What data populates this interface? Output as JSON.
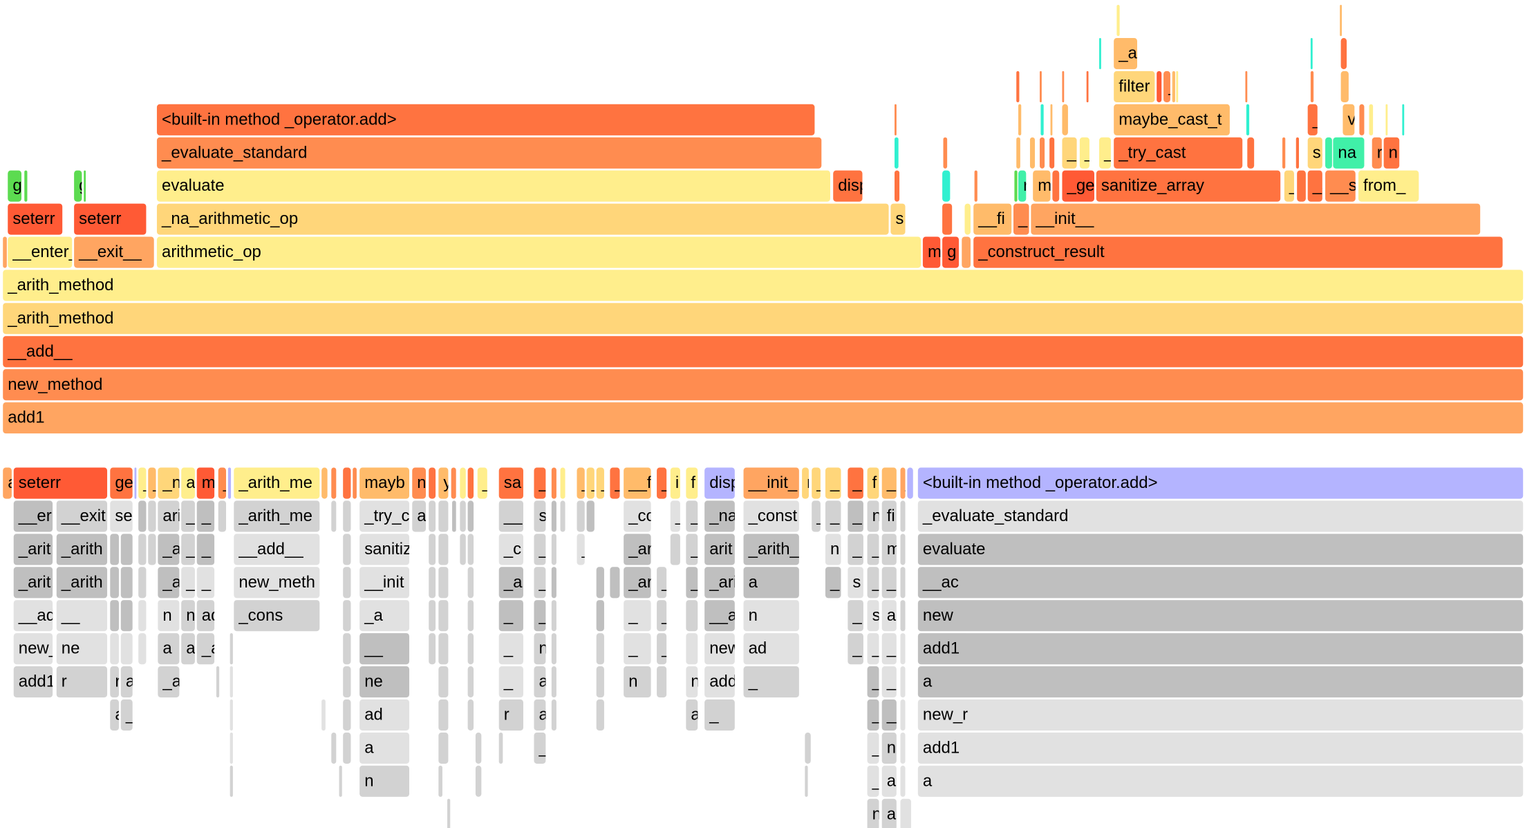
{
  "palette": {
    "Y": "#ffee8c",
    "L": "#ffd67a",
    "B": "#ffbb6a",
    "O": "#ffa561",
    "M": "#ff8c50",
    "R": "#ff7340",
    "D": "#ff5a35",
    "G": "#5cdb50",
    "C": "#30f0d0",
    "T": "#40f0a8",
    "P": "#b4b4ff",
    "A": "#e1e1e1",
    "N": "#d2d2d2",
    "K": "#bfbfbf"
  },
  "flame_graph": {
    "frames": [
      "add1",
      "new_method",
      "__add__",
      "_arith_method",
      "_arith_method",
      "__enter__",
      "__exit__",
      "arithmetic_op",
      "m",
      "g",
      "_construct_result",
      "seterr",
      "seterr",
      "_na_arithmetic_op",
      "s",
      "__fi",
      "_",
      "__init__",
      "g",
      "g",
      "evaluate",
      "disp",
      "r",
      "m",
      "_ge",
      "sanitize_array",
      "_",
      "_s",
      "__se",
      "from_",
      "_evaluate_standard",
      "_",
      "_",
      "_",
      "_try_cast",
      "s",
      "na",
      "r",
      "n",
      "<built-in method _operator.add>",
      "maybe_cast_t",
      "_",
      "va",
      "filter",
      "_",
      "_a"
    ]
  },
  "icicle_graph": {
    "frames": [
      "a",
      "seterr",
      "ge",
      "_",
      "_",
      "_n",
      "a",
      "m",
      "_",
      "_arith_me",
      "mayb",
      "n",
      "y",
      "_",
      "sa",
      "_",
      "_",
      "_",
      "_",
      "_",
      "__f",
      "_",
      "i",
      "f",
      "disp",
      "__init_",
      "r",
      "_",
      "_",
      "_",
      "f",
      "_",
      "_",
      "<built-in method _operator.add>",
      "__er",
      "__exit",
      "se",
      "ari",
      "_",
      "_",
      "_arith_me",
      "_try_c",
      "a",
      "__",
      "s",
      "_co",
      "_",
      "_",
      "_na",
      "_const",
      "_",
      "_",
      "_",
      "n",
      "fi",
      "_evaluate_standard",
      "_arit",
      "_arith",
      "_a",
      "_",
      "_",
      "__add__",
      "sanitiz",
      "_c",
      "_",
      "_",
      "_ar",
      "_",
      "arit",
      "_arith_",
      "n",
      "_",
      "_",
      "m",
      "evaluate",
      "_arit",
      "_arith",
      "_a",
      "_",
      "_",
      "new_meth",
      "__init",
      "_a",
      "_",
      "_ar",
      "_",
      "_ar",
      "_arith_",
      "a",
      "_",
      "s",
      "_",
      "_na_arithmetic_op",
      "__ac",
      "__add",
      "__",
      "n",
      "n",
      "add1",
      "_cons",
      "_a",
      "_",
      "__a",
      "_",
      "_ar",
      "__add",
      "n",
      "_",
      "s",
      "arithmetic_op",
      "new",
      "new_r",
      "ne",
      "a",
      "ad",
      "_arith",
      "__",
      "_",
      "nev",
      "_",
      "__a",
      "new_m",
      "ad",
      "_",
      "_",
      "_arith_method",
      "add1",
      "add1",
      "r",
      "r",
      "ad",
      "_arith",
      "ne",
      "_",
      "ad",
      "n",
      "nev",
      "add1",
      "_",
      "_",
      "_arith_method",
      "a",
      "a",
      "__adc",
      "ad",
      "r",
      "a",
      "adc",
      "_",
      "_",
      "__add__",
      "new_r",
      "a",
      "_",
      "_",
      "new_method",
      "add1",
      "n",
      "_",
      "add1",
      "a",
      "n",
      "a"
    ]
  }
}
